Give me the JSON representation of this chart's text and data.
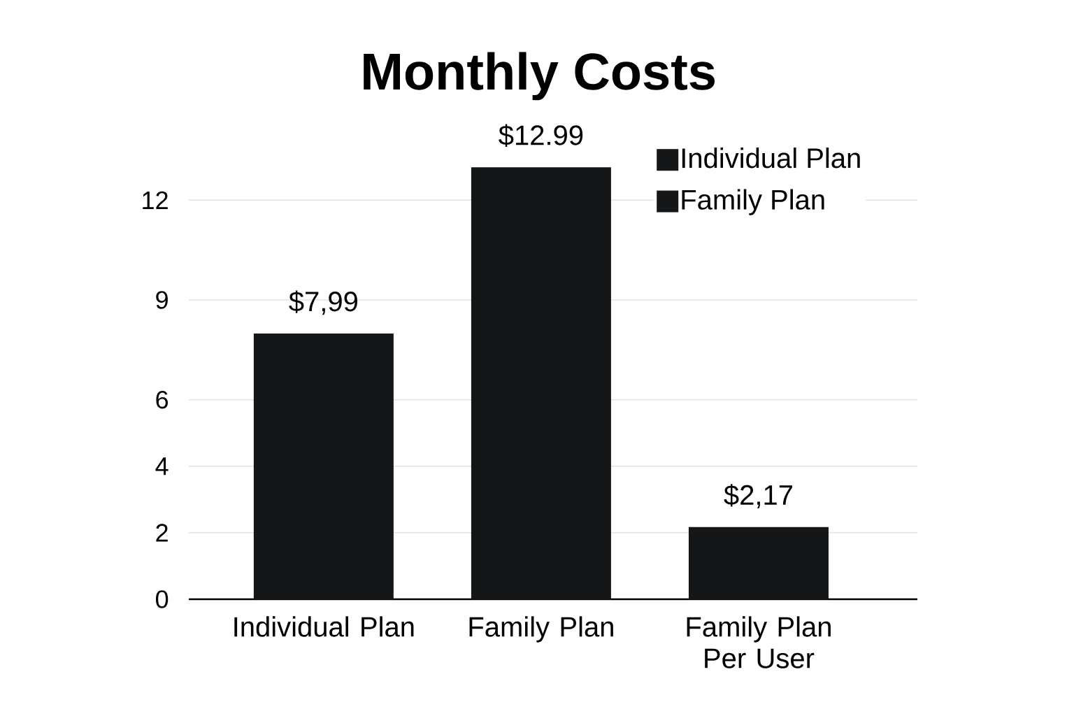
{
  "chart_data": {
    "type": "bar",
    "title": "Monthly Costs",
    "categories": [
      "Individual Plan",
      "Family Plan",
      "Family Plan Per User"
    ],
    "series": [
      {
        "name": "Individual Plan",
        "color": "#141618",
        "values": [
          7.99,
          null,
          null
        ],
        "value_labels": [
          "$7,99",
          null,
          null
        ]
      },
      {
        "name": "Family Plan",
        "color": "#141618",
        "values": [
          null,
          12.99,
          2.17
        ],
        "value_labels": [
          null,
          "$12.99",
          "$2,17"
        ]
      }
    ],
    "ylim": [
      0,
      13.5
    ],
    "yticks": [
      0,
      2,
      4,
      6,
      9,
      12
    ],
    "grid": "y",
    "legend": "top right"
  }
}
